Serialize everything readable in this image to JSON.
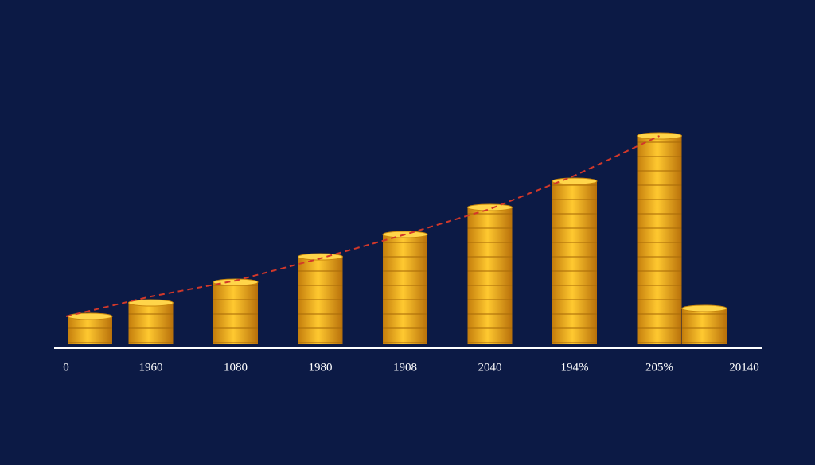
{
  "chart_data": {
    "type": "bar",
    "categories": [
      "0",
      "1960",
      "1080",
      "1980",
      "1908",
      "2040",
      "194%",
      "205%",
      "20140"
    ],
    "values": [
      35,
      52,
      78,
      110,
      138,
      172,
      205,
      262,
      45
    ],
    "color": "#f2b51e",
    "line": {
      "color": "#d2382a",
      "values": [
        35,
        60,
        80,
        108,
        138,
        170,
        212,
        262,
        null
      ]
    },
    "ylim": [
      0,
      300
    ]
  }
}
